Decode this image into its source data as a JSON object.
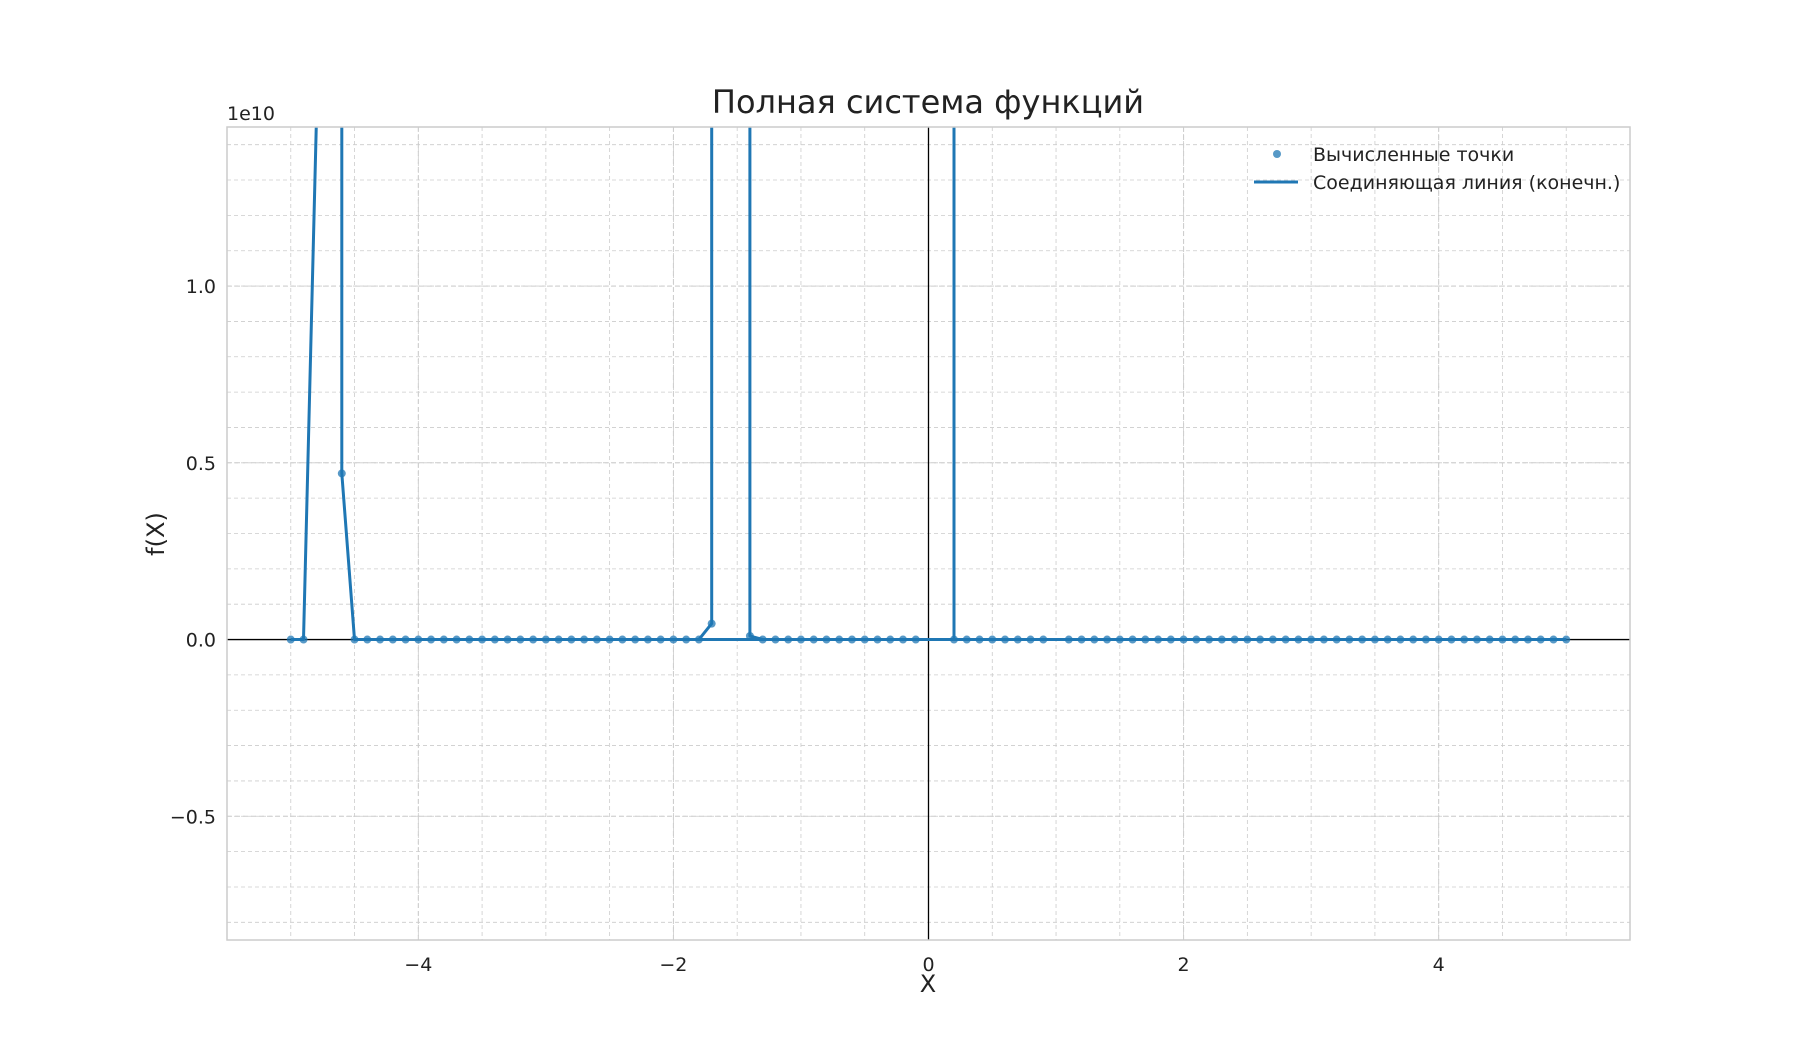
{
  "chart_data": {
    "type": "line",
    "title": "Полная система функций",
    "xlabel": "X",
    "ylabel": "f(X)",
    "offset_text": "1e10",
    "xlim": [
      -5.5,
      5.5
    ],
    "ylim": [
      -0.85,
      1.45
    ],
    "x_ticks": [
      -4,
      -2,
      0,
      2,
      4
    ],
    "x_tick_labels": [
      "−4",
      "−2",
      "0",
      "2",
      "4"
    ],
    "y_ticks": [
      -0.5,
      0.0,
      0.5,
      1.0
    ],
    "y_tick_labels": [
      "−0.5",
      "0.0",
      "0.5",
      "1.0"
    ],
    "grid": true,
    "minor_grid": true,
    "legend_position": "top-right",
    "colors": {
      "series": "#1f77b4",
      "axes": "#000000",
      "grid": "#cccccc",
      "frame": "#cccccc"
    },
    "legend": [
      {
        "label": "Вычисленные точки",
        "kind": "scatter"
      },
      {
        "label": "Соединяющая линия (конечн.)",
        "kind": "line"
      }
    ],
    "series": [
      {
        "name": "Вычисленные точки",
        "kind": "scatter",
        "x": [
          -5.0,
          -4.9,
          -4.6,
          -4.5,
          -4.4,
          -4.3,
          -4.2,
          -4.1,
          -4.0,
          -3.9,
          -3.8,
          -3.7,
          -3.6,
          -3.5,
          -3.4,
          -3.3,
          -3.2,
          -3.1,
          -3.0,
          -2.9,
          -2.8,
          -2.7,
          -2.6,
          -2.5,
          -2.4,
          -2.3,
          -2.2,
          -2.1,
          -2.0,
          -1.9,
          -1.8,
          -1.7,
          -1.4,
          -1.3,
          -1.2,
          -1.1,
          -1.0,
          -0.9,
          -0.8,
          -0.7,
          -0.6,
          -0.5,
          -0.4,
          -0.3,
          -0.2,
          -0.1,
          0.2,
          0.3,
          0.4,
          0.5,
          0.6,
          0.7,
          0.8,
          0.9,
          1.1,
          1.2,
          1.3,
          1.4,
          1.5,
          1.6,
          1.7,
          1.8,
          1.9,
          2.0,
          2.1,
          2.2,
          2.3,
          2.4,
          2.5,
          2.6,
          2.7,
          2.8,
          2.9,
          3.0,
          3.1,
          3.2,
          3.3,
          3.4,
          3.5,
          3.6,
          3.7,
          3.8,
          3.9,
          4.0,
          4.1,
          4.2,
          4.3,
          4.4,
          4.5,
          4.6,
          4.7,
          4.8,
          4.9,
          5.0
        ],
        "y": [
          0,
          0,
          0.47,
          0,
          0,
          0,
          0,
          0,
          0,
          0,
          0,
          0,
          0,
          0,
          0,
          0,
          0,
          0,
          0,
          0,
          0,
          0,
          0,
          0,
          0,
          0,
          0,
          0,
          0,
          0,
          0,
          0.045,
          0.01,
          0,
          0,
          0,
          0,
          0,
          0,
          0,
          0,
          0,
          0,
          0,
          0,
          0,
          0,
          0,
          0,
          0,
          0,
          0,
          0,
          0,
          0,
          0,
          0,
          0,
          0,
          0,
          0,
          0,
          0,
          0,
          0,
          0,
          0,
          0,
          0,
          0,
          0,
          0,
          0,
          0,
          0,
          0,
          0,
          0,
          0,
          0,
          0,
          0,
          0,
          0,
          0,
          0,
          0,
          0,
          0,
          0,
          0,
          0,
          0,
          0
        ]
      },
      {
        "name": "Соединяющая линия (конечн.)",
        "kind": "line",
        "segments": [
          {
            "x": [
              -5.0,
              -4.9,
              -4.8
            ],
            "y": [
              0,
              0,
              5.0
            ]
          },
          {
            "x": [
              -4.6,
              -4.6,
              -4.5,
              5.0
            ],
            "y": [
              5.0,
              0.47,
              0,
              0
            ]
          },
          {
            "x": [
              -1.8,
              -1.7,
              -1.7
            ],
            "y": [
              0,
              0.045,
              5.0
            ]
          },
          {
            "x": [
              -1.4,
              -1.4,
              -1.3,
              -0.1
            ],
            "y": [
              5.0,
              0.01,
              0,
              0
            ]
          },
          {
            "x": [
              0.2,
              0.2,
              0.9
            ],
            "y": [
              5.0,
              0,
              0
            ]
          },
          {
            "x": [
              1.1,
              5.0
            ],
            "y": [
              0,
              0
            ]
          }
        ]
      }
    ]
  }
}
